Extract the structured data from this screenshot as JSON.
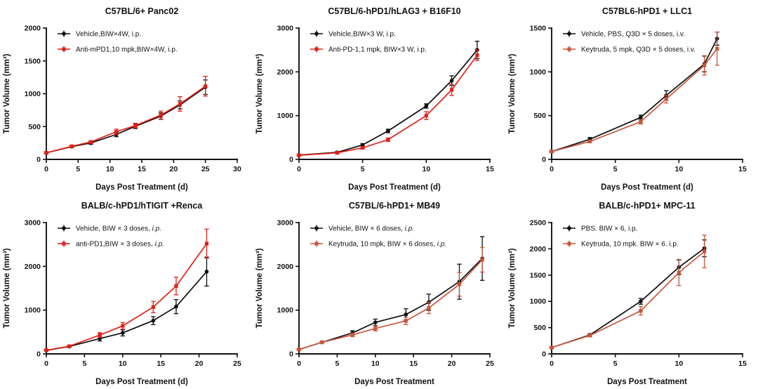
{
  "figure": {
    "background": "#ffffff",
    "rows": 2,
    "cols": 3
  },
  "colors": {
    "axis": "#111111",
    "series_black": "#0d0d0d",
    "series_red_bright": "#e02118",
    "series_red_keytruda": "#c8563c"
  },
  "chart_data": [
    {
      "type": "line",
      "title": "C57BL/6+ Panc02",
      "xlabel": "Days Post Treatment (d)",
      "ylabel": "Tumor Volume (mm³)",
      "xlim": [
        0,
        30
      ],
      "xticks": [
        0,
        5,
        10,
        15,
        20,
        25,
        30
      ],
      "ylim": [
        0,
        2000
      ],
      "yticks": [
        0,
        500,
        1000,
        1500,
        2000
      ],
      "grid": false,
      "legend_position": "top-left-inside",
      "series": [
        {
          "label": "Vehicle,BIW×4W, i.p.",
          "color": "#0d0d0d",
          "marker": "circle",
          "x": [
            0,
            4,
            7,
            11,
            14,
            18,
            21,
            25
          ],
          "y": [
            100,
            195,
            250,
            380,
            505,
            660,
            830,
            1100
          ],
          "err": [
            15,
            15,
            20,
            35,
            35,
            50,
            60,
            110
          ]
        },
        {
          "label": "Anti-mPD1,10 mpk,BIW×4W, i.p.",
          "color": "#e02118",
          "marker": "square",
          "x": [
            0,
            4,
            7,
            11,
            14,
            18,
            21,
            25
          ],
          "y": [
            100,
            200,
            265,
            420,
            515,
            675,
            845,
            1115
          ],
          "err": [
            15,
            15,
            20,
            40,
            35,
            60,
            110,
            150
          ]
        }
      ]
    },
    {
      "type": "line",
      "title": "C57BL/6-hPD1/hLAG3 + B16F10",
      "xlabel": "Days Post Treatment (d)",
      "ylabel": "Tumor Volume (mm³)",
      "xlim": [
        0,
        15
      ],
      "xticks": [
        0,
        5,
        10,
        15
      ],
      "ylim": [
        0,
        3000
      ],
      "yticks": [
        0,
        1000,
        2000,
        3000
      ],
      "grid": false,
      "legend_position": "top-left-inside",
      "series": [
        {
          "label": "Vehicle,BIW×3 W, i.p.",
          "color": "#0d0d0d",
          "marker": "circle",
          "x": [
            0,
            3,
            5,
            7,
            10,
            12,
            14
          ],
          "y": [
            100,
            160,
            330,
            650,
            1220,
            1800,
            2500
          ],
          "err": [
            15,
            20,
            30,
            40,
            50,
            110,
            200
          ]
        },
        {
          "label": "Anti-PD-1,1 mpk, BIW×3 W, i.p.",
          "color": "#e02118",
          "marker": "square",
          "x": [
            0,
            3,
            5,
            7,
            10,
            12,
            14
          ],
          "y": [
            95,
            150,
            265,
            450,
            1000,
            1590,
            2380
          ],
          "err": [
            15,
            20,
            30,
            40,
            90,
            130,
            120
          ]
        }
      ]
    },
    {
      "type": "line",
      "title": "C57BL6-hPD1 + LLC1",
      "xlabel": "Days Post Treatment (d)",
      "ylabel": "Tumor Volume (mm³)",
      "xlim": [
        0,
        15
      ],
      "xticks": [
        0,
        5,
        10,
        15
      ],
      "ylim": [
        0,
        1500
      ],
      "yticks": [
        0,
        500,
        1000,
        1500
      ],
      "grid": false,
      "legend_position": "top-left-inside",
      "series": [
        {
          "label": "Vehicle, PBS, Q3D × 5 doses, i.v.",
          "color": "#0d0d0d",
          "marker": "circle",
          "x": [
            0,
            3,
            7,
            9,
            12,
            13
          ],
          "y": [
            90,
            230,
            480,
            730,
            1090,
            1380
          ],
          "err": [
            10,
            20,
            25,
            55,
            90,
            75
          ]
        },
        {
          "label": "Keytruda, 5 mpk, Q3D × 5 doses, i.v.",
          "color": "#c8563c",
          "marker": "square",
          "x": [
            0,
            3,
            7,
            9,
            12,
            13
          ],
          "y": [
            90,
            205,
            430,
            690,
            1075,
            1265
          ],
          "err": [
            10,
            15,
            25,
            45,
            110,
            190
          ]
        }
      ]
    },
    {
      "type": "line",
      "title": "BALB/c-hPD1/hTIGIT +Renca",
      "xlabel": "Days Post Treatment (d)",
      "ylabel": "Tumor Volume (mm³)",
      "xlim": [
        0,
        25
      ],
      "xticks": [
        0,
        5,
        10,
        15,
        20,
        25
      ],
      "ylim": [
        0,
        3000
      ],
      "yticks": [
        0,
        1000,
        2000,
        3000
      ],
      "grid": false,
      "legend_position": "top-left-inside",
      "series": [
        {
          "label": "Vehicle, BIW × 3 doses, ",
          "label_italic": "i.p.",
          "color": "#0d0d0d",
          "marker": "circle",
          "x": [
            0,
            3,
            7,
            10,
            14,
            17,
            21
          ],
          "y": [
            80,
            170,
            350,
            480,
            760,
            1080,
            1880
          ],
          "err": [
            12,
            18,
            55,
            70,
            90,
            160,
            330
          ]
        },
        {
          "label": "anti-PD1,BIW × 3 doses, ",
          "label_italic": "i.p.",
          "color": "#e02118",
          "marker": "square",
          "x": [
            0,
            3,
            7,
            10,
            14,
            17,
            21
          ],
          "y": [
            85,
            175,
            430,
            640,
            1070,
            1550,
            2520
          ],
          "err": [
            12,
            18,
            55,
            75,
            130,
            200,
            330
          ]
        }
      ]
    },
    {
      "type": "line",
      "title": "C57BL/6-hPD1+ MB49",
      "xlabel": "Days Post Treatment",
      "ylabel": "Tumor Volume (mm³)",
      "xlim": [
        0,
        25
      ],
      "xticks": [
        0,
        5,
        10,
        15,
        20,
        25
      ],
      "ylim": [
        0,
        3000
      ],
      "yticks": [
        0,
        1000,
        2000,
        3000
      ],
      "grid": false,
      "legend_position": "top-left-inside",
      "series": [
        {
          "label": "Vehicle, BIW × 6 doses, ",
          "label_italic": "i.p.",
          "color": "#0d0d0d",
          "marker": "circle",
          "x": [
            0,
            3,
            7,
            10,
            14,
            17,
            21,
            24
          ],
          "y": [
            100,
            265,
            480,
            720,
            900,
            1180,
            1650,
            2180
          ],
          "err": [
            12,
            18,
            50,
            75,
            130,
            185,
            400,
            500
          ]
        },
        {
          "label": "Keytruda, 10 mpk, BIW × 6 doses, ",
          "label_italic": "i.p.",
          "color": "#c8563c",
          "marker": "square",
          "x": [
            0,
            3,
            7,
            10,
            14,
            17,
            21,
            24
          ],
          "y": [
            100,
            265,
            435,
            580,
            755,
            1050,
            1590,
            2150
          ],
          "err": [
            12,
            18,
            40,
            55,
            85,
            130,
            270,
            280
          ]
        }
      ]
    },
    {
      "type": "line",
      "title": "BALB/c-hPD1+ MPC-11",
      "xlabel": "Days Post Treatment",
      "ylabel": "Tumor Volume (mm³)",
      "xlim": [
        0,
        15
      ],
      "xticks": [
        0,
        5,
        10,
        15
      ],
      "ylim": [
        0,
        2500
      ],
      "yticks": [
        0,
        500,
        1000,
        1500,
        2000,
        2500
      ],
      "grid": false,
      "legend_position": "top-left-inside",
      "series": [
        {
          "label": "PBS. BIW × 6, i.p.",
          "color": "#0d0d0d",
          "marker": "circle",
          "x": [
            0,
            3,
            7,
            10,
            12
          ],
          "y": [
            120,
            360,
            1000,
            1650,
            2010
          ],
          "err": [
            15,
            25,
            55,
            140,
            160
          ]
        },
        {
          "label": "Keytruda, 10 mpk. BIW × 6. i.p.",
          "color": "#c8563c",
          "marker": "square",
          "x": [
            0,
            3,
            7,
            10,
            12
          ],
          "y": [
            120,
            350,
            820,
            1550,
            1950
          ],
          "err": [
            15,
            25,
            80,
            250,
            310
          ]
        }
      ]
    }
  ]
}
